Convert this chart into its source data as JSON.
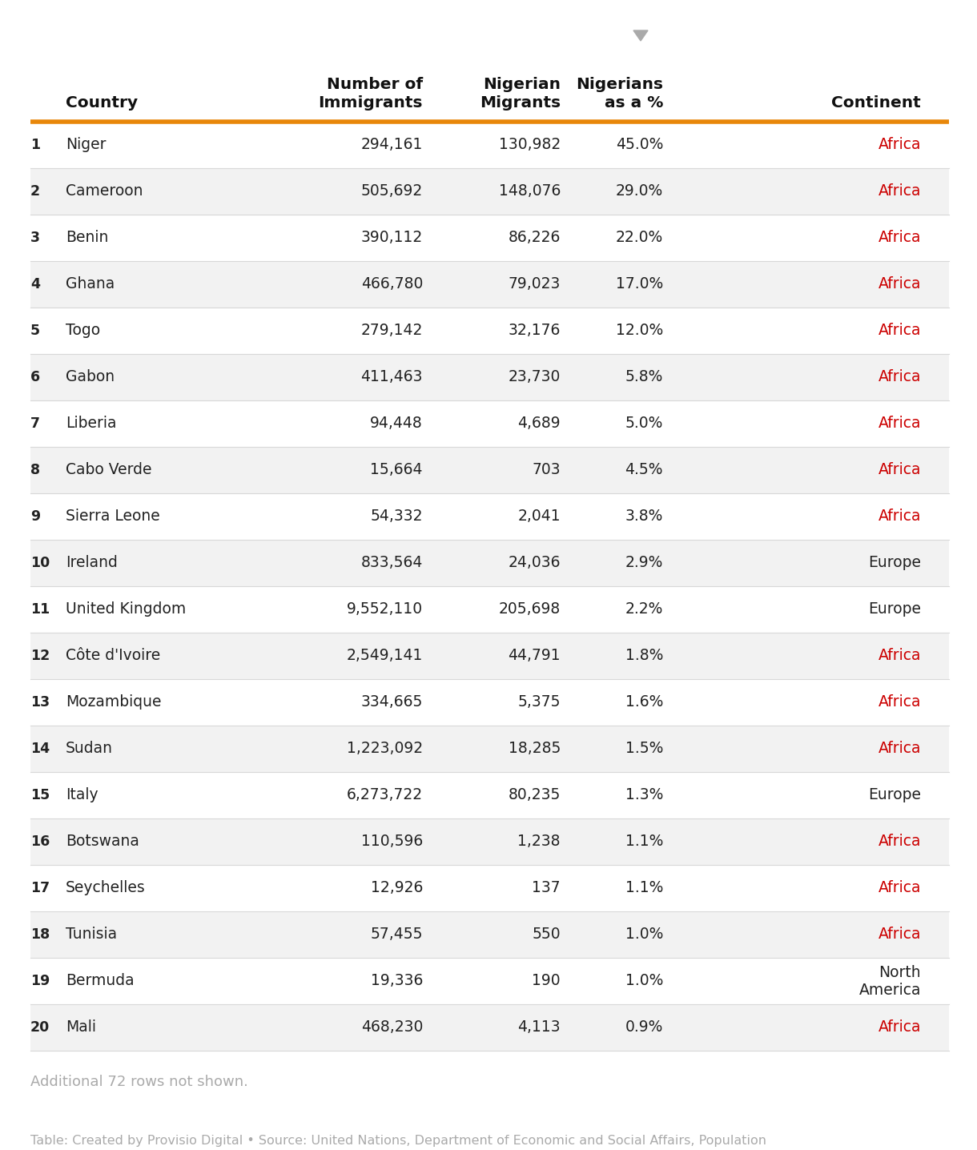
{
  "rows": [
    {
      "rank": "1",
      "country": "Niger",
      "immigrants": "294,161",
      "migrants": "130,982",
      "pct": "45.0%",
      "continent": "Africa",
      "africa": true
    },
    {
      "rank": "2",
      "country": "Cameroon",
      "immigrants": "505,692",
      "migrants": "148,076",
      "pct": "29.0%",
      "continent": "Africa",
      "africa": true
    },
    {
      "rank": "3",
      "country": "Benin",
      "immigrants": "390,112",
      "migrants": "86,226",
      "pct": "22.0%",
      "continent": "Africa",
      "africa": true
    },
    {
      "rank": "4",
      "country": "Ghana",
      "immigrants": "466,780",
      "migrants": "79,023",
      "pct": "17.0%",
      "continent": "Africa",
      "africa": true
    },
    {
      "rank": "5",
      "country": "Togo",
      "immigrants": "279,142",
      "migrants": "32,176",
      "pct": "12.0%",
      "continent": "Africa",
      "africa": true
    },
    {
      "rank": "6",
      "country": "Gabon",
      "immigrants": "411,463",
      "migrants": "23,730",
      "pct": "5.8%",
      "continent": "Africa",
      "africa": true
    },
    {
      "rank": "7",
      "country": "Liberia",
      "immigrants": "94,448",
      "migrants": "4,689",
      "pct": "5.0%",
      "continent": "Africa",
      "africa": true
    },
    {
      "rank": "8",
      "country": "Cabo Verde",
      "immigrants": "15,664",
      "migrants": "703",
      "pct": "4.5%",
      "continent": "Africa",
      "africa": true
    },
    {
      "rank": "9",
      "country": "Sierra Leone",
      "immigrants": "54,332",
      "migrants": "2,041",
      "pct": "3.8%",
      "continent": "Africa",
      "africa": true
    },
    {
      "rank": "10",
      "country": "Ireland",
      "immigrants": "833,564",
      "migrants": "24,036",
      "pct": "2.9%",
      "continent": "Europe",
      "africa": false
    },
    {
      "rank": "11",
      "country": "United Kingdom",
      "immigrants": "9,552,110",
      "migrants": "205,698",
      "pct": "2.2%",
      "continent": "Europe",
      "africa": false
    },
    {
      "rank": "12",
      "country": "Côte d'Ivoire",
      "immigrants": "2,549,141",
      "migrants": "44,791",
      "pct": "1.8%",
      "continent": "Africa",
      "africa": true
    },
    {
      "rank": "13",
      "country": "Mozambique",
      "immigrants": "334,665",
      "migrants": "5,375",
      "pct": "1.6%",
      "continent": "Africa",
      "africa": true
    },
    {
      "rank": "14",
      "country": "Sudan",
      "immigrants": "1,223,092",
      "migrants": "18,285",
      "pct": "1.5%",
      "continent": "Africa",
      "africa": true
    },
    {
      "rank": "15",
      "country": "Italy",
      "immigrants": "6,273,722",
      "migrants": "80,235",
      "pct": "1.3%",
      "continent": "Europe",
      "africa": false
    },
    {
      "rank": "16",
      "country": "Botswana",
      "immigrants": "110,596",
      "migrants": "1,238",
      "pct": "1.1%",
      "continent": "Africa",
      "africa": true
    },
    {
      "rank": "17",
      "country": "Seychelles",
      "immigrants": "12,926",
      "migrants": "137",
      "pct": "1.1%",
      "continent": "Africa",
      "africa": true
    },
    {
      "rank": "18",
      "country": "Tunisia",
      "immigrants": "57,455",
      "migrants": "550",
      "pct": "1.0%",
      "continent": "Africa",
      "africa": true
    },
    {
      "rank": "19",
      "country": "Bermuda",
      "immigrants": "19,336",
      "migrants": "190",
      "pct": "1.0%",
      "continent": "North\nAmerica",
      "africa": false
    },
    {
      "rank": "20",
      "country": "Mali",
      "immigrants": "468,230",
      "migrants": "4,113",
      "pct": "0.9%",
      "continent": "Africa",
      "africa": true
    }
  ],
  "additional_note": "Additional 72 rows not shown.",
  "footer": "Table: Created by Provisio Digital • Source: United Nations, Department of Economic and Social Affairs, Population\nDivision • Created with Datawrapper",
  "orange_line_color": "#E8870A",
  "africa_color": "#CC0000",
  "europe_color": "#222222",
  "rank_color": "#222222",
  "header_color": "#111111",
  "data_color": "#222222",
  "note_color": "#AAAAAA",
  "footer_color": "#AAAAAA",
  "bg_color": "#FFFFFF",
  "alt_row_color": "#F2F2F2",
  "white_row_color": "#FFFFFF",
  "sort_arrow_color": "#AAAAAA",
  "fig_width": 12.2,
  "fig_height": 14.36,
  "dpi": 100
}
